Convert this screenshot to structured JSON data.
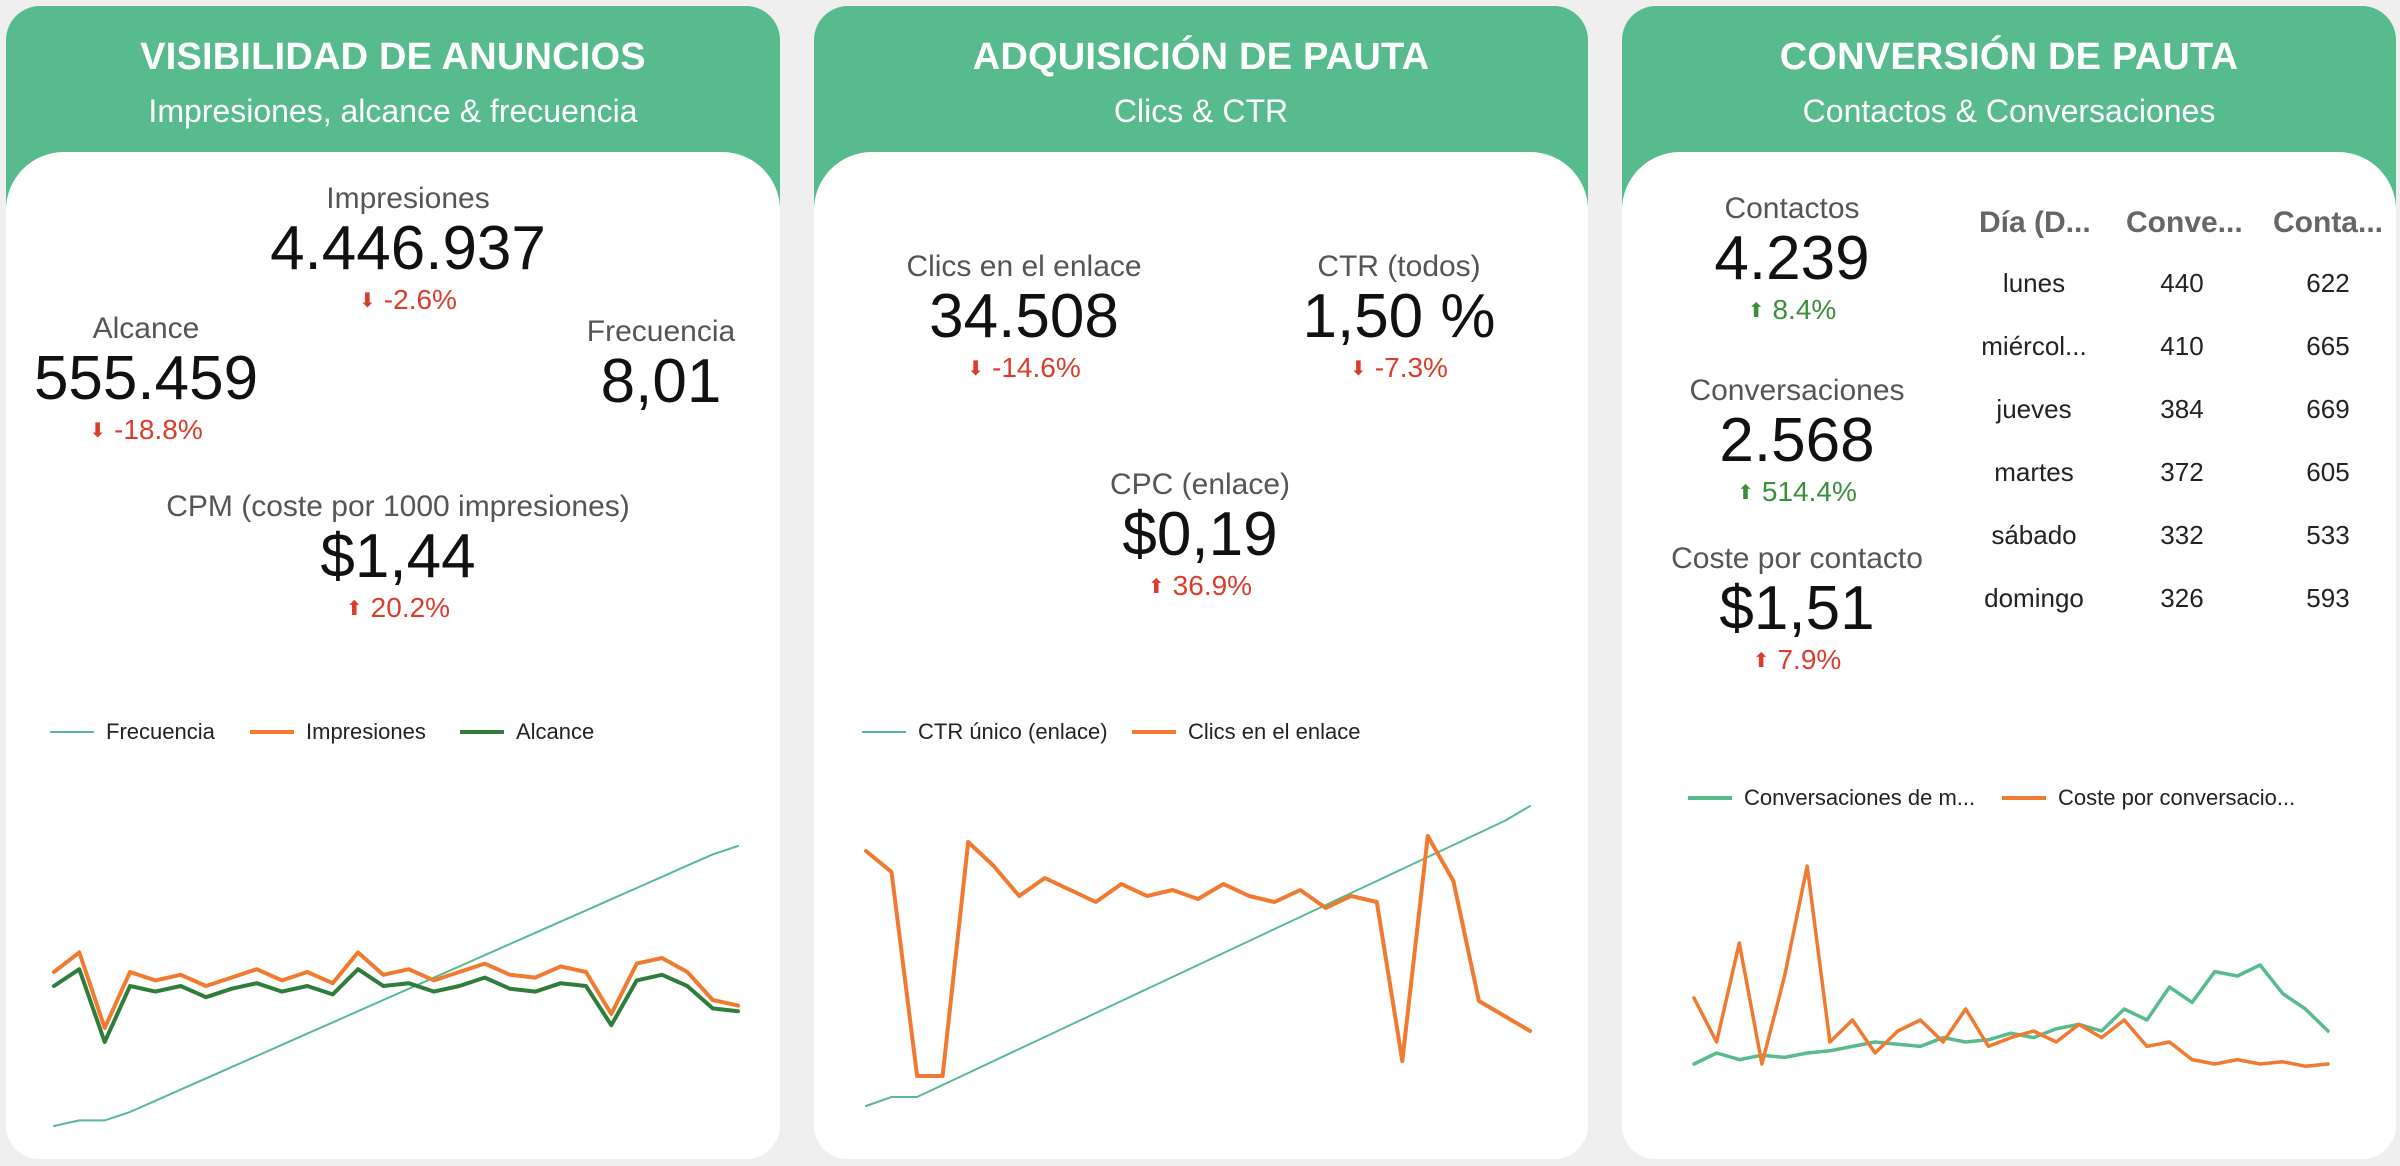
{
  "colors": {
    "header_green": "#57bb8e",
    "negative_red": "#d93d2c",
    "positive_green": "#3c8d3c",
    "series_teal": "#57bb8e",
    "series_orange": "#f07a30",
    "series_darkgreen": "#2e7d3a"
  },
  "visibilidad": {
    "title": "VISIBILIDAD DE ANUNCIOS",
    "subtitle": "Impresiones, alcance & frecuencia",
    "impresiones": {
      "label": "Impresiones",
      "value": "4.446.937",
      "delta": "-2.6%"
    },
    "alcance": {
      "label": "Alcance",
      "value": "555.459",
      "delta": "-18.8%"
    },
    "frecuencia": {
      "label": "Frecuencia",
      "value": "8,01"
    },
    "cpm": {
      "label": "CPM (coste por 1000 impresiones)",
      "value": "$1,44",
      "delta": "20.2%"
    },
    "legend": [
      "Frecuencia",
      "Impresiones",
      "Alcance"
    ]
  },
  "adquisicion": {
    "title": "ADQUISICIÓN DE PAUTA",
    "subtitle": "Clics & CTR",
    "clics": {
      "label": "Clics en el enlace",
      "value": "34.508",
      "delta": "-14.6%"
    },
    "ctr": {
      "label": "CTR (todos)",
      "value": "1,50 %",
      "delta": "-7.3%"
    },
    "cpc": {
      "label": "CPC (enlace)",
      "value": "$0,19",
      "delta": "36.9%"
    },
    "legend": [
      "CTR único (enlace)",
      "Clics en el enlace"
    ]
  },
  "conversion": {
    "title": "CONVERSIÓN DE PAUTA",
    "subtitle": "Contactos & Conversaciones",
    "contactos": {
      "label": "Contactos",
      "value": "4.239",
      "delta": "8.4%"
    },
    "conversaciones": {
      "label": "Conversaciones",
      "value": "2.568",
      "delta": "514.4%"
    },
    "coste_contacto": {
      "label": "Coste por contacto",
      "value": "$1,51",
      "delta": "7.9%"
    },
    "table": {
      "headers": [
        "Día (D...",
        "Conve...",
        "Conta..."
      ],
      "rows": [
        [
          "lunes",
          "440",
          "622"
        ],
        [
          "miércol...",
          "410",
          "665"
        ],
        [
          "jueves",
          "384",
          "669"
        ],
        [
          "martes",
          "372",
          "605"
        ],
        [
          "sábado",
          "332",
          "533"
        ],
        [
          "domingo",
          "326",
          "593"
        ]
      ]
    },
    "legend": [
      "Conversaciones de m...",
      "Coste por conversacio..."
    ]
  },
  "chart_data": [
    {
      "type": "line",
      "series": [
        {
          "name": "Frecuencia",
          "color": "#57bb8e",
          "shape": "linear-rising",
          "values": [
            0.0,
            0.02,
            0.02,
            0.05,
            0.09,
            0.13,
            0.17,
            0.21,
            0.25,
            0.29,
            0.33,
            0.37,
            0.41,
            0.45,
            0.49,
            0.53,
            0.57,
            0.61,
            0.65,
            0.69,
            0.73,
            0.77,
            0.81,
            0.85,
            0.89,
            0.93,
            0.97,
            1.0
          ]
        },
        {
          "name": "Impresiones",
          "color": "#f07a30",
          "values": [
            0.55,
            0.62,
            0.35,
            0.55,
            0.52,
            0.54,
            0.5,
            0.53,
            0.56,
            0.52,
            0.55,
            0.51,
            0.62,
            0.54,
            0.56,
            0.52,
            0.55,
            0.58,
            0.54,
            0.53,
            0.57,
            0.55,
            0.4,
            0.58,
            0.6,
            0.55,
            0.45,
            0.43
          ]
        },
        {
          "name": "Alcance",
          "color": "#2e7d3a",
          "values": [
            0.5,
            0.56,
            0.3,
            0.5,
            0.48,
            0.5,
            0.46,
            0.49,
            0.51,
            0.48,
            0.5,
            0.47,
            0.56,
            0.5,
            0.51,
            0.48,
            0.5,
            0.53,
            0.49,
            0.48,
            0.51,
            0.5,
            0.36,
            0.52,
            0.54,
            0.5,
            0.42,
            0.41
          ]
        }
      ]
    },
    {
      "type": "line",
      "series": [
        {
          "name": "CTR único (enlace)",
          "color": "#57bb8e",
          "shape": "linear-rising",
          "values": [
            0.0,
            0.03,
            0.03,
            0.07,
            0.11,
            0.15,
            0.19,
            0.23,
            0.27,
            0.31,
            0.35,
            0.39,
            0.43,
            0.47,
            0.51,
            0.55,
            0.59,
            0.63,
            0.67,
            0.71,
            0.75,
            0.79,
            0.83,
            0.87,
            0.91,
            0.95,
            1.0
          ]
        },
        {
          "name": "Clics en el enlace",
          "color": "#f07a30",
          "values": [
            0.85,
            0.78,
            0.1,
            0.1,
            0.88,
            0.8,
            0.7,
            0.76,
            0.72,
            0.68,
            0.74,
            0.7,
            0.72,
            0.69,
            0.74,
            0.7,
            0.68,
            0.72,
            0.66,
            0.7,
            0.68,
            0.15,
            0.9,
            0.75,
            0.35,
            0.3,
            0.25
          ]
        }
      ]
    },
    {
      "type": "line",
      "series": [
        {
          "name": "Conversaciones de m...",
          "color": "#57bb8e",
          "values": [
            0.1,
            0.15,
            0.12,
            0.14,
            0.13,
            0.15,
            0.16,
            0.18,
            0.2,
            0.19,
            0.18,
            0.22,
            0.2,
            0.21,
            0.24,
            0.22,
            0.26,
            0.28,
            0.25,
            0.35,
            0.3,
            0.45,
            0.38,
            0.52,
            0.5,
            0.55,
            0.42,
            0.35,
            0.25
          ]
        },
        {
          "name": "Coste por conversacio...",
          "color": "#f07a30",
          "values": [
            0.4,
            0.2,
            0.65,
            0.1,
            0.5,
            1.0,
            0.2,
            0.3,
            0.15,
            0.25,
            0.3,
            0.2,
            0.35,
            0.18,
            0.22,
            0.25,
            0.2,
            0.28,
            0.22,
            0.3,
            0.18,
            0.2,
            0.12,
            0.1,
            0.12,
            0.1,
            0.11,
            0.09,
            0.1
          ]
        }
      ]
    }
  ]
}
